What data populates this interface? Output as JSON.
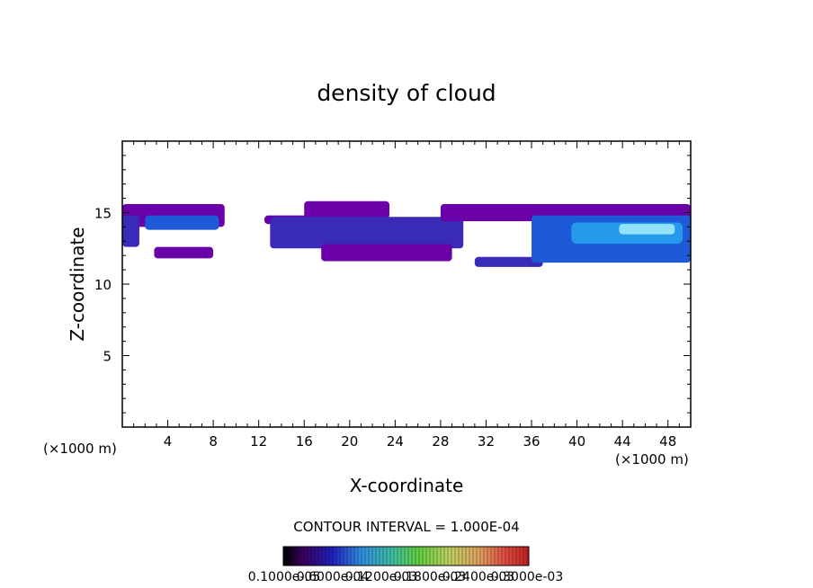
{
  "chart_data": {
    "type": "heatmap",
    "title": "density of cloud",
    "xlabel": "X-coordinate",
    "ylabel": "Z-coordinate",
    "x_unit_left": "(×1000 m)",
    "x_unit_right": "(×1000 m)",
    "xlim": [
      0,
      50
    ],
    "ylim": [
      0,
      20
    ],
    "x_ticks": [
      4,
      8,
      12,
      16,
      20,
      24,
      28,
      32,
      36,
      40,
      44,
      48
    ],
    "x_tick_labels": [
      "4",
      "8",
      "12",
      "16",
      "20",
      "24",
      "28",
      "32",
      "36",
      "40",
      "44",
      "48"
    ],
    "y_ticks": [
      5,
      10,
      15
    ],
    "y_tick_labels": [
      "5",
      "10",
      "15"
    ],
    "contour_interval_text": "CONTOUR INTERVAL = 1.000E-04",
    "colorbar_labels": [
      "0.1000e-05",
      "0.6000e-04",
      "0.1200e-03",
      "0.1800e-03",
      "0.2400e-03",
      "0.3000e-03"
    ],
    "colors": {
      "low": "#6a00a8",
      "mid_low": "#3a2ab8",
      "mid": "#1e5ad8",
      "high": "#2ab0f0",
      "peak": "#a8f0ff"
    },
    "regions": [
      {
        "x": [
          0,
          9.0
        ],
        "z_bottom": 14.0,
        "z_top": 15.6,
        "level": 0.15
      },
      {
        "x": [
          2.0,
          8.5
        ],
        "z_bottom": 13.8,
        "z_top": 14.8,
        "level": 0.35
      },
      {
        "x": [
          0,
          1.5
        ],
        "z_bottom": 12.6,
        "z_top": 14.8,
        "level": 0.25
      },
      {
        "x": [
          2.8,
          8.0
        ],
        "z_bottom": 11.8,
        "z_top": 12.6,
        "level": 0.12
      },
      {
        "x": [
          12.5,
          18.5
        ],
        "z_bottom": 14.2,
        "z_top": 14.8,
        "level": 0.1
      },
      {
        "x": [
          16.0,
          23.5
        ],
        "z_bottom": 14.6,
        "z_top": 15.8,
        "level": 0.12
      },
      {
        "x": [
          13.0,
          30.0
        ],
        "z_bottom": 12.5,
        "z_top": 14.7,
        "level": 0.2
      },
      {
        "x": [
          17.5,
          29.0
        ],
        "z_bottom": 11.6,
        "z_top": 12.8,
        "level": 0.18
      },
      {
        "x": [
          28.0,
          50.0
        ],
        "z_bottom": 14.4,
        "z_top": 15.6,
        "level": 0.15
      },
      {
        "x": [
          31.0,
          37.0
        ],
        "z_bottom": 11.2,
        "z_top": 11.9,
        "level": 0.3
      },
      {
        "x": [
          36.0,
          50.0
        ],
        "z_bottom": 11.5,
        "z_top": 14.8,
        "level": 0.5
      }
    ]
  }
}
